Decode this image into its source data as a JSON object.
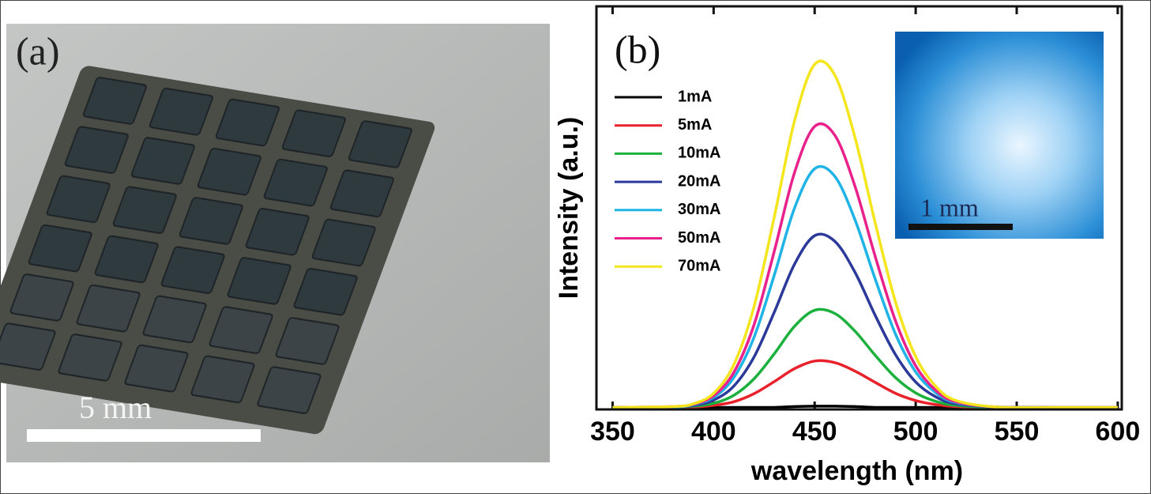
{
  "panel_a": {
    "label": "(a)",
    "scale_bar": "5 mm"
  },
  "chart_data": {
    "type": "line",
    "panel_label": "(b)",
    "xlabel": "wavelength (nm)",
    "ylabel": "Intensity (a.u.)",
    "inset_scale_bar": "1 mm",
    "x": [
      350,
      380,
      390,
      400,
      410,
      420,
      430,
      440,
      450,
      460,
      470,
      480,
      490,
      500,
      510,
      520,
      540,
      570,
      600
    ],
    "series": [
      {
        "name": "1mA",
        "color": "#000000",
        "values": [
          0.5,
          0.5,
          0.5,
          0.5,
          0.5,
          0.5,
          0.5,
          0.7,
          0.8,
          0.8,
          0.7,
          0.5,
          0.5,
          0.5,
          0.5,
          0.5,
          0.5,
          0.5,
          0.5
        ]
      },
      {
        "name": "5mA",
        "color": "#e8212a",
        "values": [
          0.5,
          0.5,
          0.6,
          1.0,
          1.9,
          3.9,
          6.9,
          10.1,
          12.0,
          11.6,
          9.5,
          6.7,
          4.0,
          2.2,
          1.2,
          0.7,
          0.5,
          0.5,
          0.5
        ]
      },
      {
        "name": "10mA",
        "color": "#1cb03c",
        "values": [
          0.5,
          0.6,
          0.8,
          1.5,
          3.5,
          7.6,
          13.8,
          20.6,
          24.6,
          23.8,
          19.4,
          13.4,
          7.9,
          4.1,
          2.0,
          1.0,
          0.5,
          0.5,
          0.5
        ]
      },
      {
        "name": "20mA",
        "color": "#2b3a9a",
        "values": [
          0.5,
          0.6,
          1.0,
          2.3,
          5.8,
          13.0,
          24.1,
          36.0,
          43.1,
          41.7,
          34.0,
          23.3,
          13.6,
          6.8,
          3.1,
          1.4,
          0.6,
          0.5,
          0.5
        ]
      },
      {
        "name": "30mA",
        "color": "#1fb3e6",
        "values": [
          0.5,
          0.6,
          1.2,
          3.0,
          7.9,
          17.9,
          33.3,
          49.9,
          59.7,
          57.8,
          47.0,
          32.3,
          18.7,
          9.3,
          4.1,
          1.7,
          0.6,
          0.5,
          0.5
        ]
      },
      {
        "name": "50mA",
        "color": "#e8228a",
        "values": [
          0.5,
          0.7,
          1.3,
          3.4,
          9.2,
          21.0,
          39.2,
          58.7,
          70.2,
          68.0,
          55.3,
          37.9,
          22.0,
          10.8,
          4.7,
          1.9,
          0.6,
          0.5,
          0.5
        ]
      },
      {
        "name": "70mA",
        "color": "#f5e51d",
        "values": [
          0.5,
          0.7,
          1.4,
          4.0,
          11.1,
          25.5,
          47.7,
          71.5,
          85.6,
          82.9,
          67.4,
          46.2,
          26.7,
          13.1,
          5.7,
          2.2,
          0.6,
          0.5,
          0.5
        ]
      }
    ],
    "xlim": [
      342,
      602
    ],
    "ylim": [
      0,
      100
    ],
    "xticks": [
      350,
      400,
      450,
      500,
      550,
      600
    ],
    "legend": "upper left"
  }
}
